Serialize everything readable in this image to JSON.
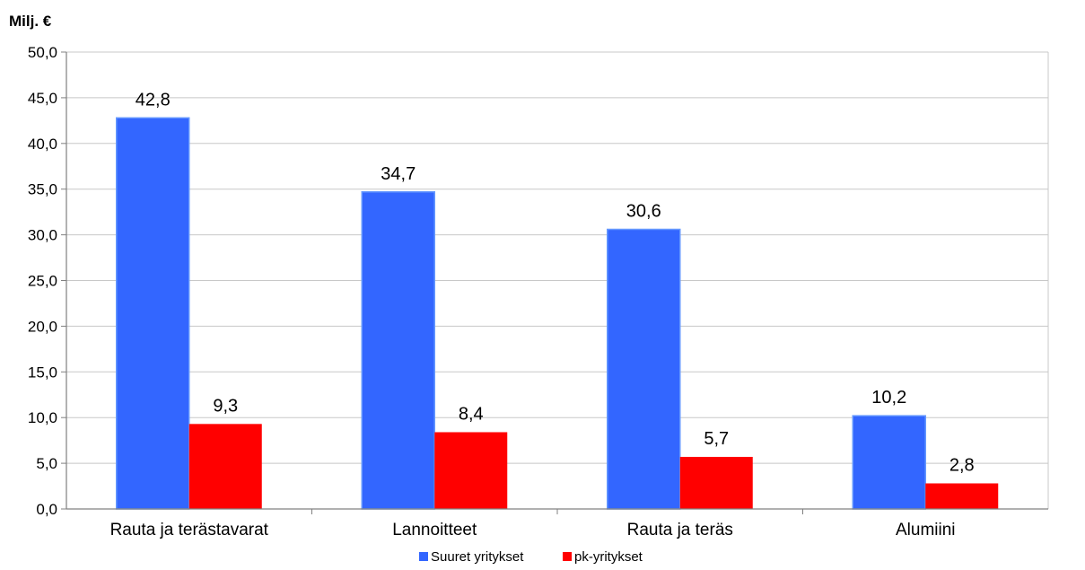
{
  "chart_data": {
    "type": "bar",
    "ylabel": "Milj. €",
    "categories": [
      "Rauta ja terästavarat",
      "Lannoitteet",
      "Rauta ja teräs",
      "Alumiini"
    ],
    "series": [
      {
        "name": "Suuret yritykset",
        "values": [
          42.8,
          34.7,
          30.6,
          10.2
        ],
        "labels": [
          "42,8",
          "34,7",
          "30,6",
          "10,2"
        ],
        "color": "#3366ff"
      },
      {
        "name": "pk-yritykset",
        "values": [
          9.3,
          8.4,
          5.7,
          2.8
        ],
        "labels": [
          "9,3",
          "8,4",
          "5,7",
          "2,8"
        ],
        "color": "#ff0000"
      }
    ],
    "ylim": [
      0,
      50
    ],
    "yticks": [
      0,
      5,
      10,
      15,
      20,
      25,
      30,
      35,
      40,
      45,
      50
    ],
    "ytick_labels": [
      "0,0",
      "5,0",
      "10,0",
      "15,0",
      "20,0",
      "25,0",
      "30,0",
      "35,0",
      "40,0",
      "45,0",
      "50,0"
    ],
    "grid": true,
    "legend": "bottom-center"
  }
}
